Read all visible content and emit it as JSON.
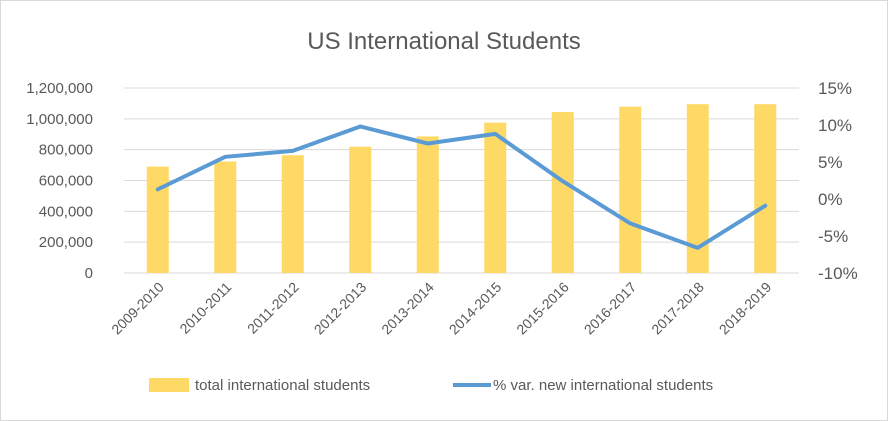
{
  "chart_data": {
    "type": "bar",
    "title": "US International Students",
    "categories": [
      "2009-2010",
      "2010-2011",
      "2011-2012",
      "2012-2013",
      "2013-2014",
      "2014-2015",
      "2015-2016",
      "2016-2017",
      "2017-2018",
      "2018-2019"
    ],
    "series": [
      {
        "name": "total international students",
        "type": "bar",
        "axis": "left",
        "color": "#FFD966",
        "values": [
          690000,
          723000,
          764000,
          819000,
          886000,
          975000,
          1044000,
          1079000,
          1095000,
          1095000
        ]
      },
      {
        "name": "% var. new international students",
        "type": "line",
        "axis": "right",
        "color": "#5B9BD5",
        "values": [
          1.3,
          5.7,
          6.5,
          9.8,
          7.5,
          8.8,
          2.4,
          -3.3,
          -6.6,
          -0.9
        ]
      }
    ],
    "y_left": {
      "min": 0,
      "max": 1200000,
      "ticks": [
        0,
        200000,
        400000,
        600000,
        800000,
        1000000,
        1200000
      ],
      "tick_labels": [
        "0",
        "200,000",
        "400,000",
        "600,000",
        "800,000",
        "1,000,000",
        "1,200,000"
      ]
    },
    "y_right": {
      "min": -10,
      "max": 15,
      "ticks": [
        -10,
        -5,
        0,
        5,
        10,
        15
      ],
      "tick_labels": [
        "-10%",
        "-5%",
        "0%",
        "5%",
        "10%",
        "15%"
      ]
    },
    "grid": true,
    "legend": "bottom"
  }
}
